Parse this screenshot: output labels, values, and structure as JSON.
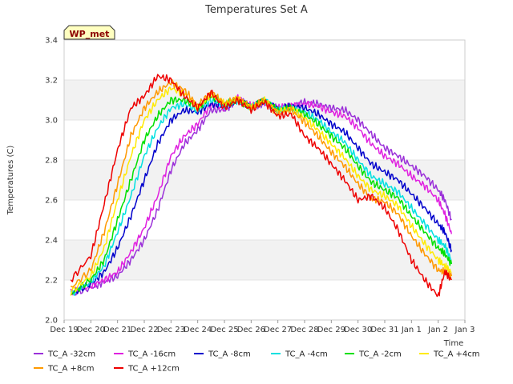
{
  "chart_data": {
    "type": "line",
    "title": "Temperatures Set A",
    "xlabel": "Time",
    "ylabel": "Temperatures (C)",
    "badge": "WP_met",
    "ylim": [
      2.0,
      3.4
    ],
    "yticks": [
      2.0,
      2.2,
      2.4,
      2.6,
      2.8,
      3.0,
      3.2,
      3.4
    ],
    "xticks": [
      "Dec 19",
      "Dec 20",
      "Dec 21",
      "Dec 22",
      "Dec 23",
      "Dec 24",
      "Dec 25",
      "Dec 26",
      "Dec 27",
      "Dec 28",
      "Dec 29",
      "Dec 30",
      "Dec 31",
      "Jan 1",
      "Jan 2",
      "Jan 3"
    ],
    "grid_bands": true,
    "legend_position": "bottom",
    "x": [
      "Dec 19 06:00",
      "Dec 20",
      "Dec 20 12:00",
      "Dec 21",
      "Dec 21 12:00",
      "Dec 22",
      "Dec 22 12:00",
      "Dec 23",
      "Dec 23 12:00",
      "Dec 24",
      "Dec 24 12:00",
      "Dec 25",
      "Dec 25 12:00",
      "Dec 26",
      "Dec 26 12:00",
      "Dec 27",
      "Dec 27 12:00",
      "Dec 28",
      "Dec 28 12:00",
      "Dec 29",
      "Dec 29 12:00",
      "Dec 30",
      "Dec 30 12:00",
      "Dec 31",
      "Dec 31 12:00",
      "Jan 1",
      "Jan 1 12:00",
      "Jan 2",
      "Jan 2 06:00",
      "Jan 2 12:00"
    ],
    "series": [
      {
        "name": "TC_A -32cm",
        "color": "#9b30d9",
        "values": [
          2.13,
          2.16,
          2.19,
          2.22,
          2.3,
          2.4,
          2.55,
          2.75,
          2.88,
          2.95,
          3.05,
          3.05,
          3.1,
          3.07,
          3.08,
          3.06,
          3.07,
          3.09,
          3.08,
          3.06,
          3.05,
          3.0,
          2.93,
          2.86,
          2.82,
          2.77,
          2.72,
          2.65,
          2.6,
          2.5
        ]
      },
      {
        "name": "TC_A -16cm",
        "color": "#e020e0",
        "values": [
          2.14,
          2.17,
          2.2,
          2.24,
          2.34,
          2.46,
          2.62,
          2.82,
          2.92,
          2.98,
          3.08,
          3.06,
          3.11,
          3.07,
          3.09,
          3.06,
          3.07,
          3.08,
          3.07,
          3.04,
          3.02,
          2.96,
          2.88,
          2.82,
          2.78,
          2.72,
          2.67,
          2.6,
          2.53,
          2.43
        ]
      },
      {
        "name": "TC_A -8cm",
        "color": "#0000cc",
        "values": [
          2.13,
          2.18,
          2.24,
          2.36,
          2.52,
          2.7,
          2.88,
          3.0,
          3.05,
          3.04,
          3.08,
          3.07,
          3.1,
          3.06,
          3.1,
          3.05,
          3.07,
          3.06,
          3.03,
          2.98,
          2.94,
          2.86,
          2.78,
          2.74,
          2.7,
          2.63,
          2.56,
          2.48,
          2.44,
          2.35
        ]
      },
      {
        "name": "TC_A -4cm",
        "color": "#00e0e0",
        "values": [
          2.13,
          2.19,
          2.27,
          2.44,
          2.62,
          2.82,
          2.96,
          3.06,
          3.08,
          3.05,
          3.1,
          3.07,
          3.1,
          3.06,
          3.1,
          3.05,
          3.06,
          3.04,
          3.0,
          2.94,
          2.89,
          2.8,
          2.72,
          2.68,
          2.64,
          2.56,
          2.48,
          2.4,
          2.37,
          2.3
        ]
      },
      {
        "name": "TC_A -2cm",
        "color": "#00e000",
        "values": [
          2.13,
          2.2,
          2.3,
          2.5,
          2.7,
          2.9,
          3.02,
          3.1,
          3.1,
          3.06,
          3.12,
          3.08,
          3.1,
          3.06,
          3.1,
          3.05,
          3.06,
          3.03,
          2.98,
          2.92,
          2.86,
          2.77,
          2.69,
          2.65,
          2.61,
          2.52,
          2.44,
          2.36,
          2.33,
          2.28
        ]
      },
      {
        "name": "TC_A +4cm",
        "color": "#ffea00",
        "values": [
          2.14,
          2.22,
          2.36,
          2.6,
          2.82,
          3.0,
          3.1,
          3.16,
          3.13,
          3.06,
          3.13,
          3.08,
          3.11,
          3.06,
          3.1,
          3.04,
          3.06,
          3.01,
          2.95,
          2.88,
          2.81,
          2.72,
          2.65,
          2.62,
          2.57,
          2.47,
          2.38,
          2.3,
          2.27,
          2.24
        ]
      },
      {
        "name": "TC_A +8cm",
        "color": "#ff9900",
        "values": [
          2.16,
          2.25,
          2.44,
          2.68,
          2.92,
          3.06,
          3.14,
          3.19,
          3.15,
          3.07,
          3.14,
          3.08,
          3.11,
          3.06,
          3.1,
          3.03,
          3.05,
          2.99,
          2.92,
          2.84,
          2.77,
          2.68,
          2.61,
          2.59,
          2.53,
          2.42,
          2.33,
          2.25,
          2.24,
          2.22
        ]
      },
      {
        "name": "TC_A +12cm",
        "color": "#ee0000",
        "values": [
          2.2,
          2.32,
          2.58,
          2.85,
          3.06,
          3.12,
          3.22,
          3.2,
          3.12,
          3.06,
          3.14,
          3.06,
          3.1,
          3.05,
          3.09,
          3.02,
          3.03,
          2.92,
          2.86,
          2.78,
          2.7,
          2.6,
          2.62,
          2.56,
          2.45,
          2.3,
          2.2,
          2.12,
          2.24,
          2.2
        ]
      }
    ]
  }
}
